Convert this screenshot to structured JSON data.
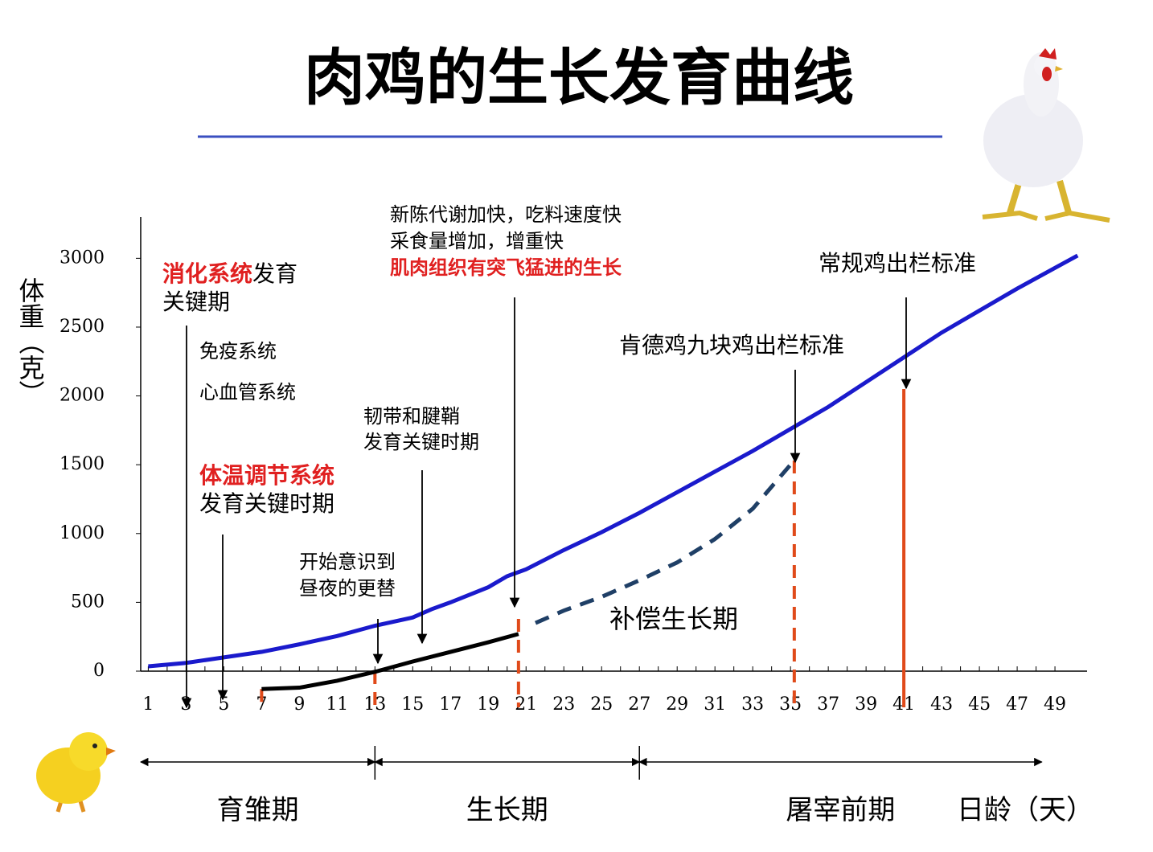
{
  "chart_data": {
    "type": "line",
    "title": "肉鸡的生长发育曲线",
    "x_label": "日龄（天）",
    "y_label": "体重（克）",
    "xlim": [
      0.6,
      50.7
    ],
    "ylim": [
      0,
      3300
    ],
    "xticks": [
      1,
      3,
      5,
      7,
      9,
      11,
      13,
      15,
      17,
      19,
      21,
      23,
      25,
      27,
      29,
      31,
      33,
      35,
      37,
      39,
      41,
      43,
      45,
      47,
      49
    ],
    "yticks": [
      0,
      500,
      1000,
      1500,
      2000,
      2500,
      3000
    ],
    "series": [
      {
        "color": "#1a1acc",
        "style": "solid",
        "x": [
          1,
          3,
          5,
          7,
          9,
          11,
          13,
          15,
          16,
          17,
          19,
          20,
          21,
          23,
          25,
          27,
          29,
          31,
          33,
          35,
          37,
          39,
          41,
          43,
          45,
          47,
          49,
          50.2
        ],
        "values": [
          35,
          60,
          100,
          140,
          195,
          255,
          330,
          390,
          450,
          500,
          610,
          690,
          740,
          880,
          1010,
          1150,
          1300,
          1450,
          1600,
          1760,
          1920,
          2100,
          2280,
          2460,
          2620,
          2780,
          2930,
          3020
        ]
      },
      {
        "color": "#000000",
        "style": "solid",
        "x": [
          7,
          9,
          11,
          13,
          15,
          17,
          19,
          20.6
        ],
        "values": [
          -130,
          -120,
          -70,
          -5,
          70,
          140,
          210,
          270
        ]
      },
      {
        "color": "#1f3f66",
        "style": "dashed",
        "x": [
          21.5,
          23,
          25,
          27,
          29,
          31,
          33,
          35,
          35.3
        ],
        "values": [
          350,
          440,
          540,
          660,
          790,
          960,
          1180,
          1500,
          1570
        ]
      }
    ],
    "markers": [
      {
        "x": 7,
        "top": -130,
        "color": "#e04a1a",
        "style": "dashed"
      },
      {
        "x": 13,
        "top": 0,
        "color": "#e04a1a",
        "style": "dashed"
      },
      {
        "x": 20.6,
        "top": 380,
        "color": "#e04a1a",
        "style": "dashed"
      },
      {
        "x": 35.2,
        "top": 1530,
        "color": "#e04a1a",
        "style": "dashed"
      },
      {
        "x": 41,
        "top": 2050,
        "color": "#e04a1a",
        "style": "solid"
      }
    ],
    "phases": [
      {
        "label": "育雏期",
        "start": 0.6,
        "end": 13
      },
      {
        "label": "生长期",
        "start": 13,
        "end": 27
      },
      {
        "label": "屠宰前期",
        "start": 27,
        "end": 48.3
      }
    ],
    "annotations": [
      {
        "lines": [
          [
            {
              "text": "消化系统",
              "color": "#e02020"
            },
            {
              "text": "发育"
            }
          ],
          [
            {
              "text": "关键期"
            }
          ]
        ]
      },
      {
        "lines": [
          [
            {
              "text": "免疫系统"
            }
          ],
          [
            {
              "text": "心血管系统"
            }
          ]
        ]
      },
      {
        "lines": [
          [
            {
              "text": "体温调节系统",
              "color": "#e02020"
            }
          ],
          [
            {
              "text": "发育关键时期"
            }
          ]
        ]
      },
      {
        "lines": [
          [
            {
              "text": "开始意识到"
            }
          ],
          [
            {
              "text": "昼夜的更替"
            }
          ]
        ]
      },
      {
        "lines": [
          [
            {
              "text": "韧带和腱鞘"
            }
          ],
          [
            {
              "text": "发育关键时期"
            }
          ]
        ]
      },
      {
        "lines": [
          [
            {
              "text": "新陈代谢加快，吃料速度快"
            }
          ],
          [
            {
              "text": "采食量增加，增重快"
            }
          ],
          [
            {
              "text": "肌肉组织有突飞猛进的生长",
              "color": "#e02020"
            }
          ]
        ]
      },
      {
        "lines": [
          [
            {
              "text": "肯德鸡九块鸡出栏标准"
            }
          ]
        ]
      },
      {
        "lines": [
          [
            {
              "text": "常规鸡出栏标准"
            }
          ]
        ]
      },
      {
        "lines": [
          [
            {
              "text": "补偿生长期"
            }
          ]
        ]
      }
    ]
  }
}
